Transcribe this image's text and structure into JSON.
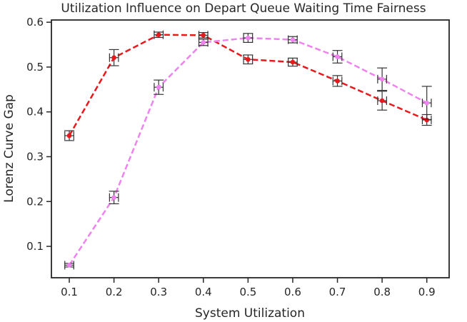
{
  "chart_data": {
    "type": "line",
    "title": "Utilization Influence on Depart Queue Waiting Time Fairness",
    "xlabel": "System Utilization",
    "ylabel": "Lorenz Curve Gap",
    "xlim": [
      0.06,
      0.95
    ],
    "ylim": [
      0.03,
      0.605
    ],
    "x_ticks": [
      0.1,
      0.2,
      0.3,
      0.4,
      0.5,
      0.6,
      0.7,
      0.8,
      0.9
    ],
    "y_ticks": [
      0.1,
      0.2,
      0.3,
      0.4,
      0.5,
      0.6
    ],
    "x_tick_labels": [
      "0.1",
      "0.2",
      "0.3",
      "0.4",
      "0.5",
      "0.6",
      "0.7",
      "0.8",
      "0.9"
    ],
    "y_tick_labels": [
      "0.1",
      "0.2",
      "0.3",
      "0.4",
      "0.5",
      "0.6"
    ],
    "grid": false,
    "legend": "none",
    "series": [
      {
        "color": "#e8191d",
        "style": "dashed",
        "x": [
          0.1,
          0.2,
          0.3,
          0.4,
          0.5,
          0.6,
          0.7,
          0.8,
          0.9
        ],
        "y": [
          0.347,
          0.521,
          0.572,
          0.571,
          0.517,
          0.511,
          0.469,
          0.425,
          0.382
        ],
        "yerr": [
          0.011,
          0.018,
          0.006,
          0.006,
          0.01,
          0.009,
          0.012,
          0.021,
          0.012
        ],
        "xerr": [
          0.01,
          0.01,
          0.01,
          0.01,
          0.01,
          0.01,
          0.01,
          0.01,
          0.01
        ]
      },
      {
        "color": "#ee82ee",
        "style": "dashed",
        "x": [
          0.1,
          0.2,
          0.3,
          0.4,
          0.5,
          0.6,
          0.7,
          0.8,
          0.9
        ],
        "y": [
          0.058,
          0.209,
          0.455,
          0.555,
          0.565,
          0.561,
          0.523,
          0.473,
          0.42
        ],
        "yerr": [
          0.004,
          0.014,
          0.016,
          0.007,
          0.01,
          0.007,
          0.014,
          0.025,
          0.037
        ],
        "xerr": [
          0.01,
          0.01,
          0.01,
          0.01,
          0.01,
          0.01,
          0.01,
          0.01,
          0.01
        ]
      }
    ]
  }
}
